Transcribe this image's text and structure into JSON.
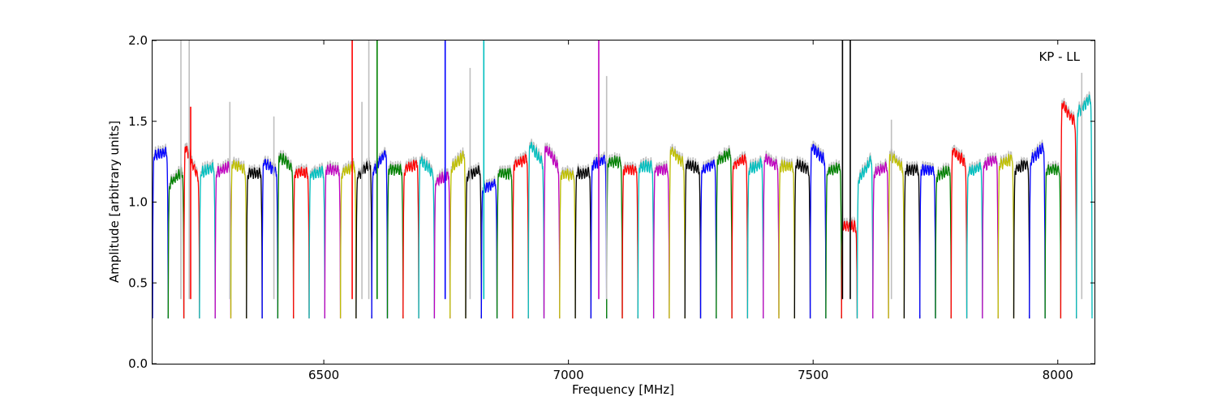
{
  "chart_data": {
    "type": "line",
    "title": "",
    "annotation": "KP - LL",
    "xlabel": "Frequency [MHz]",
    "ylabel": "Amplitude [arbitrary units]",
    "xlim": [
      6150,
      8075
    ],
    "ylim": [
      0.0,
      2.0
    ],
    "xticks": [
      6500,
      7000,
      7500,
      8000
    ],
    "yticks": [
      0.0,
      0.5,
      1.0,
      1.5,
      2.0
    ],
    "xtick_labels": [
      "6500",
      "7000",
      "7500",
      "8000"
    ],
    "ytick_labels": [
      "0.0",
      "0.5",
      "1.0",
      "1.5",
      "2.0"
    ],
    "grid": false,
    "channel_width_mhz": 32,
    "channel_start_mhz": 6150,
    "channel_color_cycle": [
      "#0000ff",
      "#008000",
      "#ff0000",
      "#00bfbf",
      "#bf00bf",
      "#bfbf00",
      "#000000"
    ],
    "background_series_color": "#bfbfbf",
    "channels": [
      {
        "start": 6150,
        "level": 1.3,
        "tilt": 0.03
      },
      {
        "start": 6182,
        "level": 1.15,
        "tilt": 0.1
      },
      {
        "start": 6214,
        "level": 1.25,
        "tilt": -0.25
      },
      {
        "start": 6246,
        "level": 1.2,
        "tilt": 0.05
      },
      {
        "start": 6278,
        "level": 1.2,
        "tilt": 0.05
      },
      {
        "start": 6310,
        "level": 1.22,
        "tilt": -0.05
      },
      {
        "start": 6342,
        "level": 1.18,
        "tilt": 0.0
      },
      {
        "start": 6374,
        "level": 1.22,
        "tilt": -0.08
      },
      {
        "start": 6406,
        "level": 1.25,
        "tilt": -0.08
      },
      {
        "start": 6438,
        "level": 1.18,
        "tilt": 0.0
      },
      {
        "start": 6470,
        "level": 1.18,
        "tilt": 0.02
      },
      {
        "start": 6502,
        "level": 1.2,
        "tilt": 0.0
      },
      {
        "start": 6534,
        "level": 1.2,
        "tilt": 0.05
      },
      {
        "start": 6566,
        "level": 1.2,
        "tilt": 0.1
      },
      {
        "start": 6598,
        "level": 1.25,
        "tilt": 0.15
      },
      {
        "start": 6630,
        "level": 1.2,
        "tilt": 0.0
      },
      {
        "start": 6662,
        "level": 1.22,
        "tilt": 0.05
      },
      {
        "start": 6694,
        "level": 1.22,
        "tilt": -0.1
      },
      {
        "start": 6726,
        "level": 1.15,
        "tilt": 0.05
      },
      {
        "start": 6758,
        "level": 1.25,
        "tilt": 0.1
      },
      {
        "start": 6790,
        "level": 1.18,
        "tilt": 0.05
      },
      {
        "start": 6822,
        "level": 1.1,
        "tilt": 0.05
      },
      {
        "start": 6854,
        "level": 1.18,
        "tilt": 0.0
      },
      {
        "start": 6886,
        "level": 1.25,
        "tilt": 0.05
      },
      {
        "start": 6918,
        "level": 1.3,
        "tilt": -0.15
      },
      {
        "start": 6950,
        "level": 1.28,
        "tilt": -0.15
      },
      {
        "start": 6982,
        "level": 1.17,
        "tilt": 0.0
      },
      {
        "start": 7014,
        "level": 1.18,
        "tilt": 0.0
      },
      {
        "start": 7046,
        "level": 1.25,
        "tilt": 0.05
      },
      {
        "start": 7078,
        "level": 1.25,
        "tilt": 0.0
      },
      {
        "start": 7110,
        "level": 1.2,
        "tilt": 0.0
      },
      {
        "start": 7142,
        "level": 1.22,
        "tilt": 0.0
      },
      {
        "start": 7174,
        "level": 1.2,
        "tilt": 0.0
      },
      {
        "start": 7206,
        "level": 1.28,
        "tilt": -0.1
      },
      {
        "start": 7238,
        "level": 1.22,
        "tilt": -0.05
      },
      {
        "start": 7270,
        "level": 1.22,
        "tilt": 0.05
      },
      {
        "start": 7302,
        "level": 1.28,
        "tilt": 0.05
      },
      {
        "start": 7334,
        "level": 1.25,
        "tilt": 0.05
      },
      {
        "start": 7366,
        "level": 1.22,
        "tilt": 0.05
      },
      {
        "start": 7398,
        "level": 1.25,
        "tilt": -0.05
      },
      {
        "start": 7430,
        "level": 1.22,
        "tilt": 0.0
      },
      {
        "start": 7462,
        "level": 1.22,
        "tilt": -0.05
      },
      {
        "start": 7494,
        "level": 1.3,
        "tilt": -0.1
      },
      {
        "start": 7526,
        "level": 1.2,
        "tilt": 0.05
      },
      {
        "start": 7558,
        "level": 0.85,
        "tilt": 0.0
      },
      {
        "start": 7590,
        "level": 1.2,
        "tilt": 0.15
      },
      {
        "start": 7622,
        "level": 1.2,
        "tilt": 0.05
      },
      {
        "start": 7654,
        "level": 1.25,
        "tilt": -0.1
      },
      {
        "start": 7686,
        "level": 1.2,
        "tilt": 0.0
      },
      {
        "start": 7718,
        "level": 1.2,
        "tilt": 0.0
      },
      {
        "start": 7750,
        "level": 1.18,
        "tilt": 0.05
      },
      {
        "start": 7782,
        "level": 1.28,
        "tilt": -0.1
      },
      {
        "start": 7814,
        "level": 1.2,
        "tilt": 0.05
      },
      {
        "start": 7846,
        "level": 1.25,
        "tilt": 0.05
      },
      {
        "start": 7878,
        "level": 1.25,
        "tilt": 0.05
      },
      {
        "start": 7910,
        "level": 1.22,
        "tilt": 0.05
      },
      {
        "start": 7942,
        "level": 1.3,
        "tilt": 0.1
      },
      {
        "start": 7974,
        "level": 1.2,
        "tilt": 0.0
      },
      {
        "start": 8006,
        "level": 1.55,
        "tilt": -0.15
      },
      {
        "start": 8038,
        "level": 1.6,
        "tilt": 0.1
      }
    ],
    "spikes": [
      {
        "x": 6208,
        "y": 2.0,
        "color": "#bfbfbf"
      },
      {
        "x": 6225,
        "y": 2.0,
        "color": "#bfbfbf"
      },
      {
        "x": 6228,
        "y": 1.59,
        "color": "#ff0000"
      },
      {
        "x": 6308,
        "y": 1.62,
        "color": "#bfbfbf"
      },
      {
        "x": 6398,
        "y": 1.53,
        "color": "#bfbfbf"
      },
      {
        "x": 6558,
        "y": 2.0,
        "color": "#ff0000"
      },
      {
        "x": 6578,
        "y": 1.62,
        "color": "#bfbfbf"
      },
      {
        "x": 6592,
        "y": 2.0,
        "color": "#bfbfbf"
      },
      {
        "x": 6609,
        "y": 2.0,
        "color": "#008000"
      },
      {
        "x": 6748,
        "y": 2.0,
        "color": "#0000ff"
      },
      {
        "x": 6799,
        "y": 1.83,
        "color": "#bfbfbf"
      },
      {
        "x": 6827,
        "y": 2.0,
        "color": "#00bfbf"
      },
      {
        "x": 7062,
        "y": 2.0,
        "color": "#bf00bf"
      },
      {
        "x": 7078,
        "y": 1.78,
        "color": "#bfbfbf"
      },
      {
        "x": 7560,
        "y": 2.0,
        "color": "#000000"
      },
      {
        "x": 7576,
        "y": 2.0,
        "color": "#000000"
      },
      {
        "x": 7660,
        "y": 1.51,
        "color": "#bfbfbf"
      },
      {
        "x": 8049,
        "y": 1.8,
        "color": "#bfbfbf"
      }
    ]
  }
}
